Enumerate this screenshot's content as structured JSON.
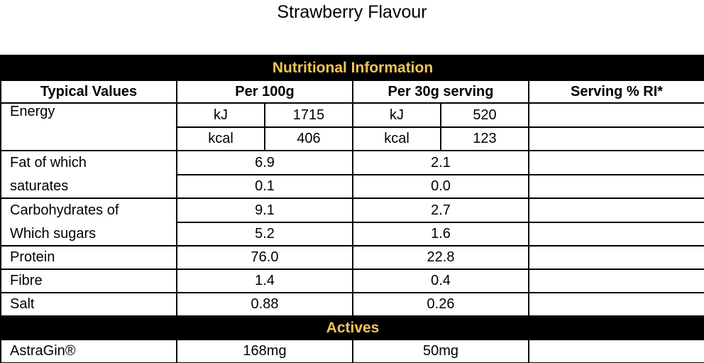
{
  "title": "Strawberry Flavour",
  "table": {
    "band_nutrition": "Nutritional Information",
    "headers": [
      "Typical Values",
      "Per 100g",
      "Per 30g serving",
      "Serving % RI*"
    ],
    "energy": {
      "label": "Energy",
      "kj": {
        "unit": "kJ",
        "per100": "1715",
        "per30": "520"
      },
      "kcal": {
        "unit": "kcal",
        "per100": "406",
        "per30": "123"
      }
    },
    "rows": [
      {
        "label": "Fat of which",
        "per100": "6.9",
        "per30": "2.1"
      },
      {
        "label": "saturates",
        "per100": "0.1",
        "per30": "0.0"
      },
      {
        "label": "Carbohydrates of",
        "per100": "9.1",
        "per30": "2.7"
      },
      {
        "label": "Which sugars",
        "per100": "5.2",
        "per30": "1.6"
      },
      {
        "label": "Protein",
        "per100": "76.0",
        "per30": "22.8"
      },
      {
        "label": "Fibre",
        "per100": "1.4",
        "per30": "0.4"
      },
      {
        "label": "Salt",
        "per100": "0.88",
        "per30": "0.26"
      }
    ],
    "band_actives": "Actives",
    "actives": [
      {
        "label": "AstraGin®",
        "per100": "168mg",
        "per30": "50mg"
      }
    ]
  },
  "colors": {
    "band_bg": "#000000",
    "band_text": "#f2c35a"
  }
}
